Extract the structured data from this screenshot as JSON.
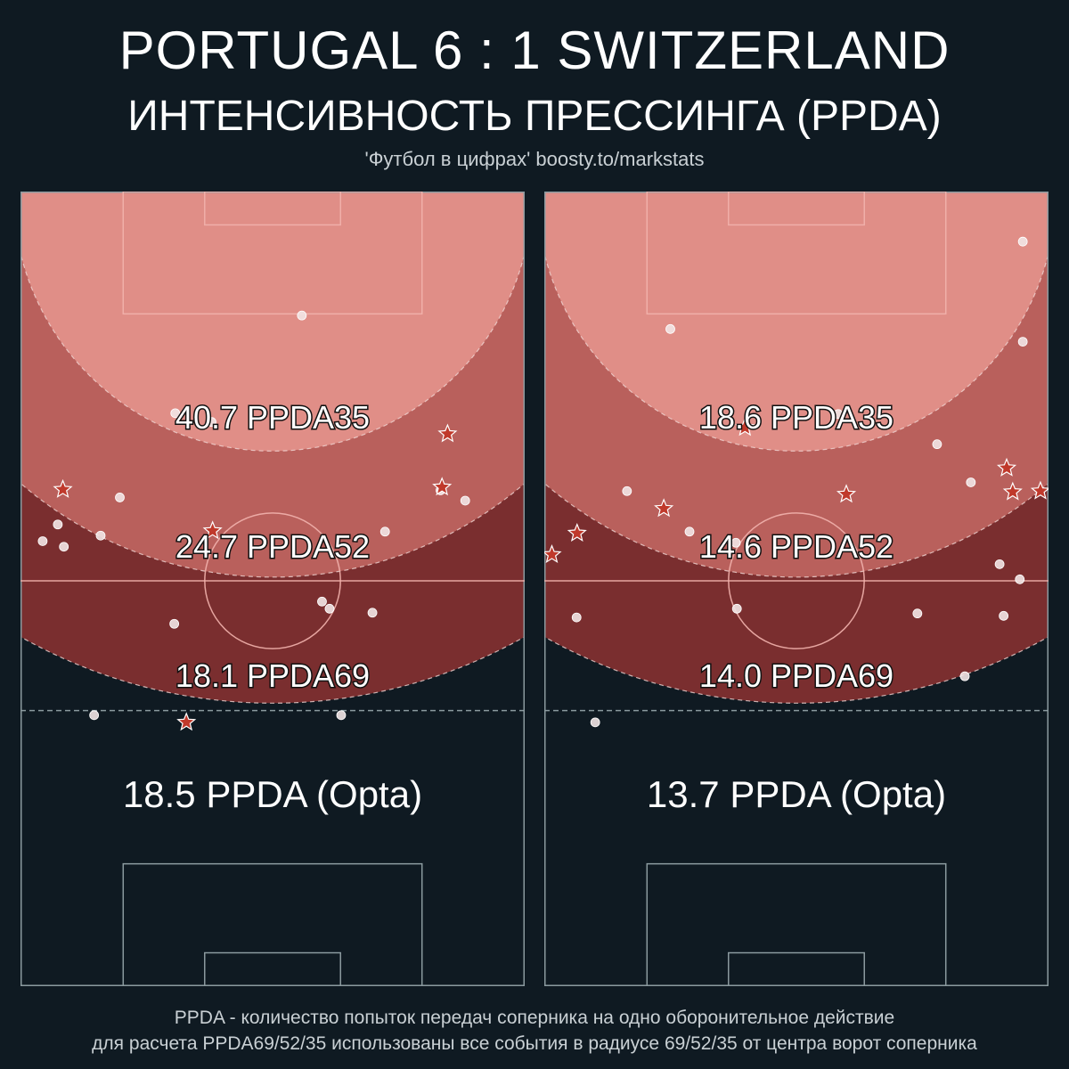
{
  "header": {
    "title": "PORTUGAL  6 : 1  SWITZERLAND",
    "subtitle": "ИНТЕНСИВНОСТЬ ПРЕССИНГА (PPDA)",
    "credit": "'Футбол в цифрах' boosty.to/markstats"
  },
  "footer": {
    "line1": "PPDA - количество попыток передач соперника на одно оборонительное действие",
    "line2": "для расчета PPDA69/52/35 использованы все события в радиусе 69/52/35 от центра ворот соперника"
  },
  "colors": {
    "background": "#0f1a22",
    "zone35": "#e08e87",
    "zone52": "#b9605c",
    "zone69": "#7a2e2f",
    "pitch_lines": "#8b9a9f",
    "star_fill": "#c0392b",
    "dot_fill": "#f2e6e6"
  },
  "chart_data": [
    {
      "type": "scatter",
      "team": "Portugal",
      "zones": [
        {
          "label": "40.7 PPDA35",
          "radius": 35,
          "ppda": 40.7
        },
        {
          "label": "24.7 PPDA52",
          "radius": 52,
          "ppda": 24.7
        },
        {
          "label": "18.1 PPDA69",
          "radius": 69,
          "ppda": 18.1
        }
      ],
      "opta_label": "18.5 PPDA (Opta)",
      "opta_ppda": 18.5,
      "stars": [
        [
          84.7,
          69.5
        ],
        [
          8.4,
          62.5
        ],
        [
          83.6,
          62.8
        ],
        [
          38.1,
          57.3
        ],
        [
          32.9,
          33.2
        ]
      ],
      "dots": [
        [
          55.8,
          84.4
        ],
        [
          30.7,
          72.1
        ],
        [
          37.9,
          71.0
        ],
        [
          19.7,
          61.5
        ],
        [
          88.2,
          61.1
        ],
        [
          83.3,
          62.4
        ],
        [
          7.4,
          58.1
        ],
        [
          15.9,
          56.7
        ],
        [
          72.3,
          57.2
        ],
        [
          4.4,
          56.0
        ],
        [
          8.6,
          55.3
        ],
        [
          59.8,
          48.4
        ],
        [
          61.3,
          47.5
        ],
        [
          30.5,
          45.6
        ],
        [
          69.8,
          47.0
        ],
        [
          63.6,
          34.1
        ],
        [
          14.6,
          34.1
        ]
      ]
    },
    {
      "type": "scatter",
      "team": "Switzerland",
      "zones": [
        {
          "label": "18.6 PPDA35",
          "radius": 35,
          "ppda": 18.6
        },
        {
          "label": "14.6 PPDA52",
          "radius": 52,
          "ppda": 14.6
        },
        {
          "label": "14.0 PPDA69",
          "radius": 69,
          "ppda": 14.0
        }
      ],
      "opta_label": "13.7 PPDA (Opta)",
      "opta_ppda": 13.7,
      "stars": [
        [
          39.8,
          70.3
        ],
        [
          59.9,
          61.9
        ],
        [
          91.7,
          65.2
        ],
        [
          92.9,
          62.2
        ],
        [
          98.4,
          62.3
        ],
        [
          23.7,
          60.1
        ],
        [
          6.5,
          57.0
        ],
        [
          1.5,
          54.3
        ]
      ],
      "dots": [
        [
          94.9,
          93.7
        ],
        [
          25.0,
          82.7
        ],
        [
          94.9,
          81.1
        ],
        [
          58.3,
          72.0
        ],
        [
          77.9,
          68.2
        ],
        [
          84.6,
          63.4
        ],
        [
          16.4,
          62.3
        ],
        [
          28.8,
          57.2
        ],
        [
          38.0,
          55.8
        ],
        [
          90.3,
          53.1
        ],
        [
          94.3,
          51.2
        ],
        [
          38.2,
          47.5
        ],
        [
          74.0,
          46.9
        ],
        [
          91.1,
          46.6
        ],
        [
          6.4,
          46.4
        ],
        [
          83.4,
          39.0
        ],
        [
          10.1,
          33.2
        ]
      ]
    }
  ]
}
